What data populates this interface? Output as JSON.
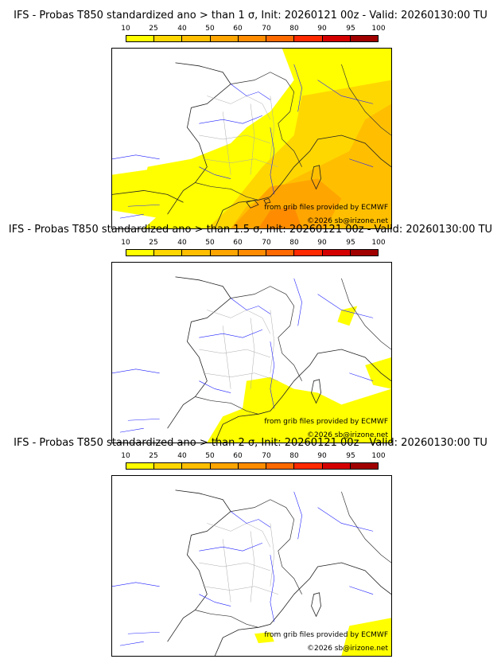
{
  "colorbar": {
    "labels": [
      "10",
      "25",
      "40",
      "50",
      "60",
      "70",
      "80",
      "90",
      "95",
      "100"
    ],
    "colors": [
      "#ffff00",
      "#ffd700",
      "#ffbf00",
      "#ffa500",
      "#ff8c00",
      "#ff6a00",
      "#ff2a00",
      "#d40000",
      "#a00000",
      "#6a0000"
    ]
  },
  "credits": {
    "grib": "from grib files provided by ECMWF",
    "copyright": "©2026 sb@irizone.net"
  },
  "panels": [
    {
      "title": "IFS - Probas T850  standardized ano > than 1 σ, Init: 20260121 00z - Valid: 20260130:00 TU",
      "threshold": "1 σ"
    },
    {
      "title": "IFS - Probas T850  standardized ano > than 1.5 σ, Init: 20260121 00z - Valid: 20260130:00 TU",
      "threshold": "1.5 σ"
    },
    {
      "title": "IFS - Probas T850  standardized ano > than 2 σ, Init: 20260121 00z - Valid: 20260130:00 TU",
      "threshold": "2 σ"
    }
  ]
}
